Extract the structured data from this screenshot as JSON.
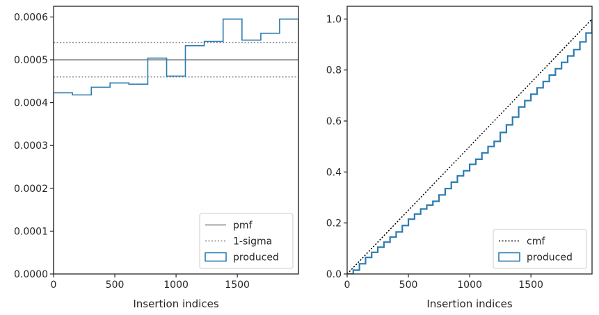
{
  "chart_data": [
    {
      "type": "line",
      "xlabel": "Insertion indices",
      "ylabel": "",
      "xlim": [
        0,
        1999
      ],
      "ylim": [
        0,
        0.000625
      ],
      "xticks": [
        0,
        500,
        1000,
        1500
      ],
      "xtick_labels": [
        "0",
        "500",
        "1000",
        "1500"
      ],
      "yticks": [
        0,
        0.0001,
        0.0002,
        0.0003,
        0.0004,
        0.0005,
        0.0006
      ],
      "ytick_labels": [
        "0.0000",
        "0.0001",
        "0.0002",
        "0.0003",
        "0.0004",
        "0.0005",
        "0.0006"
      ],
      "legend_position": "bottom-right",
      "grid": false,
      "series": [
        {
          "name": "pmf",
          "style": "solid",
          "color": "#808080",
          "y": 0.0005
        },
        {
          "name": "1-sigma",
          "style": "dotted",
          "color": "#808080",
          "y": [
            0.00046,
            0.00054
          ]
        },
        {
          "name": "produced",
          "style": "step",
          "color": "#2b7bb0",
          "bin_edges": [
            0,
            154,
            308,
            461,
            615,
            769,
            923,
            1076,
            1230,
            1384,
            1538,
            1692,
            1845,
            1999
          ],
          "values": [
            0.000423,
            0.000418,
            0.000436,
            0.000446,
            0.000443,
            0.000504,
            0.000462,
            0.000533,
            0.000543,
            0.000595,
            0.000546,
            0.000562,
            0.000595
          ]
        }
      ]
    },
    {
      "type": "line",
      "xlabel": "Insertion indices",
      "ylabel": "",
      "xlim": [
        0,
        1999
      ],
      "ylim": [
        0,
        1.05
      ],
      "xticks": [
        0,
        500,
        1000,
        1500
      ],
      "xtick_labels": [
        "0",
        "500",
        "1000",
        "1500"
      ],
      "yticks": [
        0,
        0.2,
        0.4,
        0.6,
        0.8,
        1.0
      ],
      "ytick_labels": [
        "0.0",
        "0.2",
        "0.4",
        "0.6",
        "0.8",
        "1.0"
      ],
      "legend_position": "bottom-right",
      "grid": false,
      "series": [
        {
          "name": "cmf",
          "style": "dotted",
          "color": "#000000",
          "x": [
            0,
            1999
          ],
          "y": [
            0,
            1.0
          ]
        },
        {
          "name": "produced",
          "style": "step",
          "color": "#2b7bb0",
          "x": [
            0,
            50,
            100,
            150,
            200,
            250,
            300,
            350,
            400,
            450,
            500,
            550,
            600,
            650,
            700,
            750,
            800,
            850,
            900,
            950,
            1000,
            1050,
            1100,
            1150,
            1200,
            1250,
            1300,
            1350,
            1400,
            1450,
            1500,
            1550,
            1600,
            1650,
            1700,
            1750,
            1800,
            1850,
            1900,
            1950,
            1999
          ],
          "y": [
            0,
            0.015,
            0.04,
            0.065,
            0.085,
            0.105,
            0.125,
            0.145,
            0.165,
            0.19,
            0.215,
            0.235,
            0.255,
            0.27,
            0.285,
            0.31,
            0.335,
            0.36,
            0.385,
            0.405,
            0.43,
            0.45,
            0.475,
            0.5,
            0.52,
            0.555,
            0.585,
            0.615,
            0.655,
            0.68,
            0.705,
            0.73,
            0.755,
            0.78,
            0.805,
            0.83,
            0.855,
            0.88,
            0.91,
            0.945,
            1.0
          ]
        }
      ]
    }
  ]
}
